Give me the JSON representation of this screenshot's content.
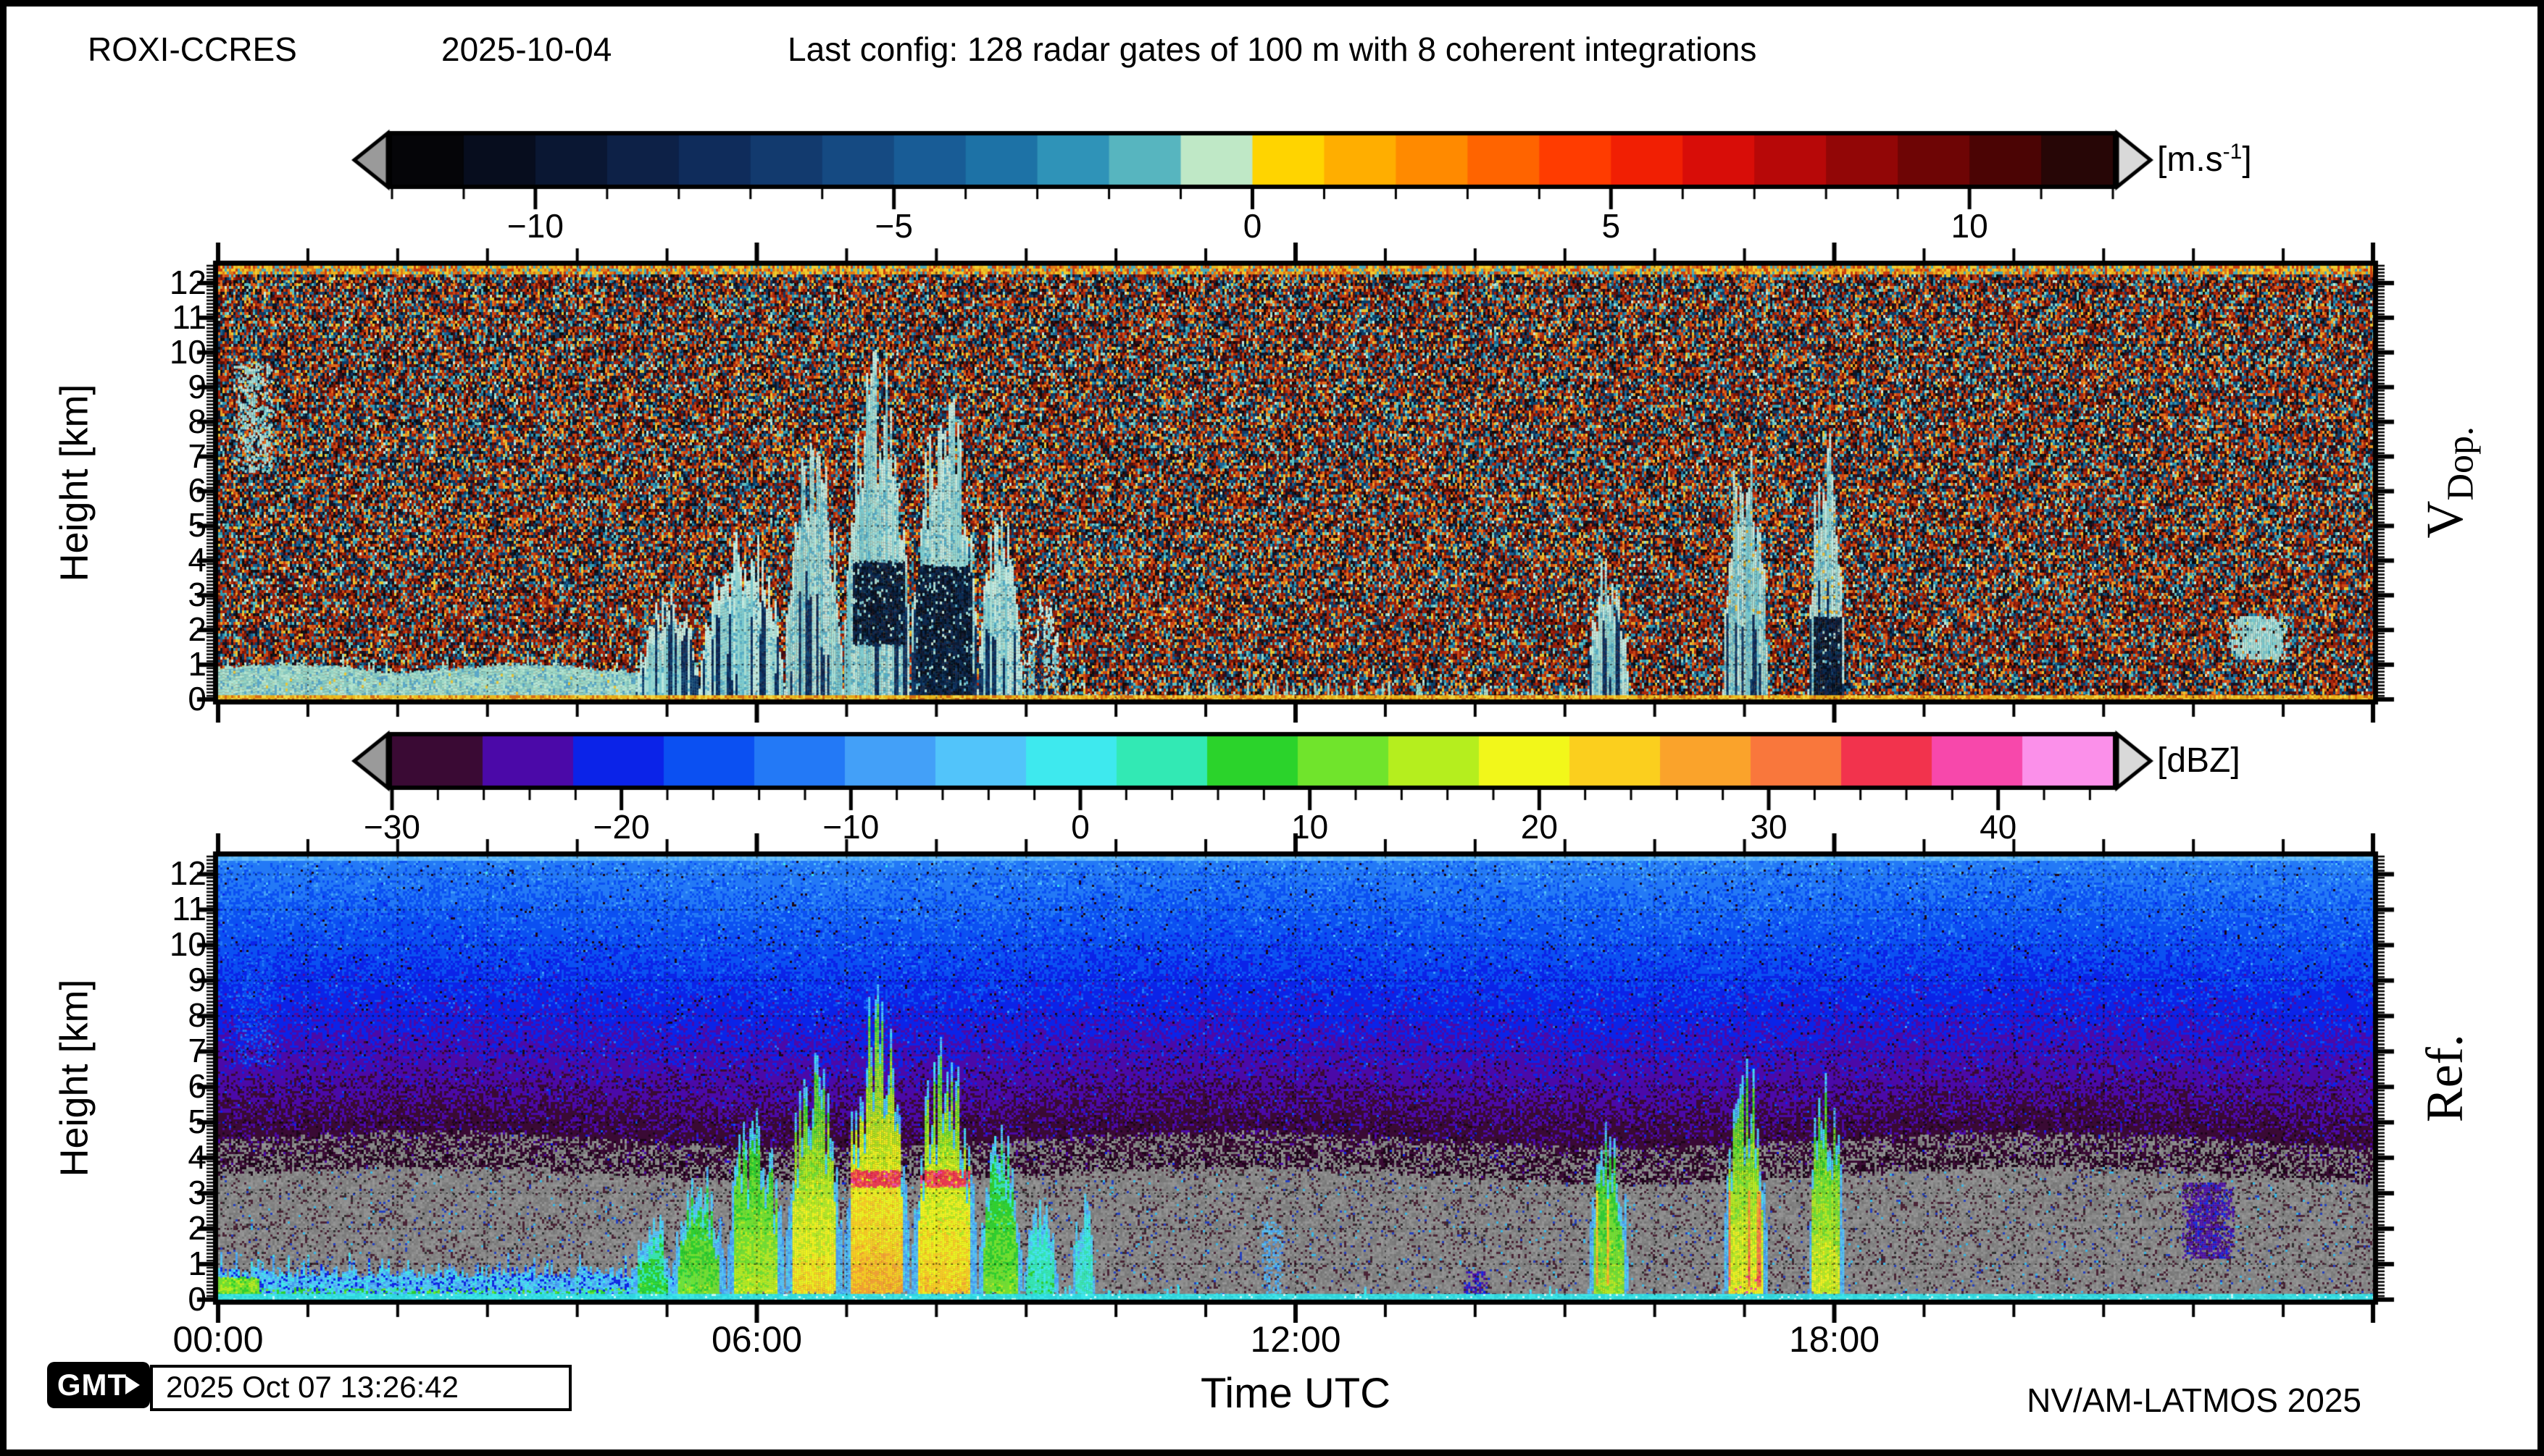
{
  "header": {
    "station": "ROXI-CCRES",
    "date": "2025-10-04",
    "config_note": "Last config: 128 radar gates of 100 m with 8 coherent integrations"
  },
  "footer": {
    "logo_text": "GMT",
    "render_timestamp": "2025 Oct 07 13:26:42",
    "credit": "NV/AM-LATMOS 2025"
  },
  "chart_data": [
    {
      "id": "vdop",
      "type": "heatmap",
      "title": "Doppler velocity time-height quicklook",
      "side_label": {
        "main": "V",
        "sub": "Dop."
      },
      "x_axis": {
        "label": "Time UTC",
        "range_hours": [
          0,
          24
        ],
        "major_ticks": [
          {
            "hour": 0,
            "label": "00:00"
          },
          {
            "hour": 6,
            "label": "06:00"
          },
          {
            "hour": 12,
            "label": "12:00"
          },
          {
            "hour": 18,
            "label": "18:00"
          }
        ],
        "minor_tick_hours": 1,
        "grid": "dotted hourly"
      },
      "y_axis": {
        "label": "Height [km]",
        "range_km": [
          0,
          12.5
        ],
        "major_tick_km": 1,
        "minor_tick_km": 0.1,
        "tick_labels": [
          "0",
          "1",
          "2",
          "3",
          "4",
          "5",
          "6",
          "7",
          "8",
          "9",
          "10",
          "11",
          "12"
        ],
        "grid": "dotted every km"
      },
      "colorbar": {
        "unit_prefix": "[m.s",
        "unit_sup": "-1",
        "unit_suffix": "]",
        "range": [
          -12,
          12
        ],
        "tick_values": [
          -10,
          -5,
          0,
          5,
          10
        ],
        "tick_labels": [
          "-10",
          "-5",
          "0",
          "5",
          "10"
        ],
        "minor_step": 1,
        "under_arrow_color": "#9a9a9a",
        "over_arrow_color": "#d9d9d9",
        "stops": [
          "#050508",
          "#070d1e",
          "#0a1733",
          "#0d2147",
          "#0f2c5b",
          "#123a6e",
          "#154a82",
          "#185c96",
          "#1d72a6",
          "#2f93b8",
          "#57b5bf",
          "#bfe8c6",
          "#ffd400",
          "#ffae00",
          "#ff8a00",
          "#ff6400",
          "#ff3c00",
          "#f11f03",
          "#d80d08",
          "#b70808",
          "#920606",
          "#6e0505",
          "#4b0404",
          "#270606"
        ]
      },
      "noise": {
        "description": "full-field aliased Doppler speckle noise",
        "palette": [
          {
            "c": "#a8260e",
            "w": 8
          },
          {
            "c": "#cb4414",
            "w": 7
          },
          {
            "c": "#e06b1c",
            "w": 5
          },
          {
            "c": "#7c1507",
            "w": 6
          },
          {
            "c": "#55100a",
            "w": 5
          },
          {
            "c": "#e89b26",
            "w": 3
          },
          {
            "c": "#e5c632",
            "w": 3
          },
          {
            "c": "#0b1628",
            "w": 7
          },
          {
            "c": "#123a64",
            "w": 6
          },
          {
            "c": "#1a6292",
            "w": 5
          },
          {
            "c": "#2f97b2",
            "w": 5
          },
          {
            "c": "#5fc0bd",
            "w": 4
          },
          {
            "c": "#93d6c8",
            "w": 2
          },
          {
            "c": "#120a08",
            "w": 6
          },
          {
            "c": "#310c1c",
            "w": 3
          },
          {
            "c": "#c8e8d8",
            "w": 1
          },
          {
            "c": "#06406a",
            "w": 3
          }
        ]
      },
      "edge_lines": {
        "top_colors": [
          "#e8b41e",
          "#f0cc30",
          "#e07818",
          "#c83c10",
          "#48a8b8"
        ],
        "bottom_colors": [
          "#f0bc1a",
          "#e8a812",
          "#f8d840",
          "#d86a10"
        ]
      },
      "cloud_colors": {
        "body": [
          "#a9dfd6",
          "#94d6d2",
          "#bfe9e0",
          "#7ccbd0"
        ],
        "deep": "#58b0c8",
        "fringe": "#c4ece2",
        "navy_streaks": [
          "#0c3060",
          "#0a2550",
          "#11406f"
        ],
        "dark_core": [
          "#071c38",
          "#0a2a52",
          "#04101f"
        ],
        "warm_specks": [
          "#e8a828",
          "#edc837"
        ],
        "bl": [
          "#a6dcc8",
          "#97d4c4",
          "#b4e4d2",
          "#86c8c0"
        ],
        "bl_striation": "#5aa8c8"
      },
      "features": [
        {
          "kind": "patch",
          "t0": 0.15,
          "t1": 0.62,
          "h0": 6.6,
          "h1": 9.7,
          "density": 0.45
        },
        {
          "kind": "boundary_layer",
          "t0": 0.0,
          "t1": 5.35,
          "h_top": 0.85
        },
        {
          "kind": "cell",
          "t0": 4.65,
          "t1": 5.35,
          "h_top": 2.8,
          "streaks": 0.45
        },
        {
          "kind": "cell",
          "t0": 5.35,
          "t1": 6.3,
          "h_top": 4.4,
          "streaks": 0.4
        },
        {
          "kind": "cell",
          "t0": 6.3,
          "t1": 6.95,
          "h_top": 6.7,
          "streaks": 0.35
        },
        {
          "kind": "cell",
          "t0": 6.95,
          "t1": 7.7,
          "h_top": 8.7,
          "streaks": 0.3,
          "dark_core": {
            "t0": 7.05,
            "t1": 7.65,
            "h0": 1.6,
            "h1": 4.0
          }
        },
        {
          "kind": "cell",
          "t0": 7.7,
          "t1": 8.45,
          "h_top": 7.7,
          "streaks": 0.75,
          "dark_core": {
            "t0": 7.75,
            "t1": 8.4,
            "h0": 0.1,
            "h1": 3.9
          }
        },
        {
          "kind": "cell",
          "t0": 8.45,
          "t1": 8.95,
          "h_top": 4.9,
          "streaks": 0.5
        },
        {
          "kind": "cell",
          "t0": 8.95,
          "t1": 9.4,
          "h_top": 2.7,
          "streaks": 0.3,
          "faint": true
        },
        {
          "kind": "grass",
          "t0": 9.4,
          "t1": 15.2,
          "h_top": 0.45,
          "density": 0.18
        },
        {
          "kind": "cell",
          "t0": 15.25,
          "t1": 15.7,
          "h_top": 3.6,
          "streaks": 0.5
        },
        {
          "kind": "cell",
          "t0": 16.75,
          "t1": 17.25,
          "h_top": 6.9,
          "streaks": 0.45,
          "warm_specks": true
        },
        {
          "kind": "cell",
          "t0": 17.7,
          "t1": 18.1,
          "h_top": 7.4,
          "streaks": 0.6,
          "warm_specks": true,
          "dark_core": {
            "t0": 17.75,
            "t1": 18.08,
            "h0": 0.0,
            "h1": 2.4
          }
        },
        {
          "kind": "patch",
          "t0": 22.35,
          "t1": 23.1,
          "h0": 1.2,
          "h1": 2.4,
          "density": 0.92
        }
      ]
    },
    {
      "id": "ref",
      "type": "heatmap",
      "title": "Radar reflectivity time-height quicklook",
      "side_label": {
        "main": "Ref.",
        "sub": ""
      },
      "x_axis": {
        "label": "Time UTC",
        "range_hours": [
          0,
          24
        ],
        "major_ticks": [
          {
            "hour": 0,
            "label": "00:00"
          },
          {
            "hour": 6,
            "label": "06:00"
          },
          {
            "hour": 12,
            "label": "12:00"
          },
          {
            "hour": 18,
            "label": "18:00"
          }
        ],
        "minor_tick_hours": 1,
        "grid": "dotted hourly"
      },
      "y_axis": {
        "label": "Height [km]",
        "range_km": [
          0,
          12.5
        ],
        "major_tick_km": 1,
        "minor_tick_km": 0.1,
        "tick_labels": [
          "0",
          "1",
          "2",
          "3",
          "4",
          "5",
          "6",
          "7",
          "8",
          "9",
          "10",
          "11",
          "12"
        ],
        "grid": "dotted every km"
      },
      "colorbar": {
        "unit_prefix": "[dBZ]",
        "unit_sup": "",
        "unit_suffix": "",
        "range": [
          -30,
          45
        ],
        "tick_values": [
          -30,
          -20,
          -10,
          0,
          10,
          20,
          30,
          40
        ],
        "tick_labels": [
          "-30",
          "-20",
          "-10",
          "0",
          "10",
          "20",
          "30",
          "40"
        ],
        "minor_step": 2,
        "under_arrow_color": "#9a9a9a",
        "over_arrow_color": "#d9d9d9",
        "stops": [
          "#3a0a34",
          "#4b09a8",
          "#0b23e8",
          "#0b50f2",
          "#2379f6",
          "#43a0f8",
          "#52c4fa",
          "#3ee9ee",
          "#32e9b4",
          "#2bd32b",
          "#70e42c",
          "#b5ee1e",
          "#f2f71a",
          "#fbcf1e",
          "#faa32b",
          "#f9773c",
          "#f2334d",
          "#f748ab",
          "#fb90ea"
        ]
      },
      "background": {
        "description": "range-dependent noise floor: bright blue aloft darkening downward; below threshold height the field is sub-noise gray",
        "gray_fill": "#7d7d7d",
        "threshold_km": 3.45,
        "slope_dbz_per_km": 2.05,
        "bottom_line_color": "#3ce8ea",
        "top_line_colors": [
          "#55b0f8",
          "#6cc0fa"
        ]
      },
      "features": [
        {
          "kind": "patch",
          "t0": 0.15,
          "t1": 0.62,
          "h0": 6.6,
          "h1": 9.7,
          "density": 0.5,
          "dbz": -16
        },
        {
          "kind": "boundary_layer",
          "t0": 0.0,
          "t1": 5.35,
          "h_top": 1.05
        },
        {
          "kind": "cell",
          "t0": 4.6,
          "t1": 5.05,
          "h_top": 2.4,
          "dbz": 10
        },
        {
          "kind": "cell",
          "t0": 5.05,
          "t1": 5.65,
          "h_top": 3.6,
          "dbz": 14
        },
        {
          "kind": "cell",
          "t0": 5.65,
          "t1": 6.3,
          "h_top": 5.2,
          "dbz": 18
        },
        {
          "kind": "cell",
          "t0": 6.3,
          "t1": 6.95,
          "h_top": 6.6,
          "dbz": 24
        },
        {
          "kind": "cell",
          "t0": 6.95,
          "t1": 7.7,
          "h_top": 8.1,
          "dbz": 28,
          "bright_band": true
        },
        {
          "kind": "cell",
          "t0": 7.7,
          "t1": 8.45,
          "h_top": 6.9,
          "dbz": 26,
          "bright_band": true
        },
        {
          "kind": "cell",
          "t0": 8.45,
          "t1": 8.95,
          "h_top": 4.6,
          "dbz": 14
        },
        {
          "kind": "cell",
          "t0": 8.95,
          "t1": 9.35,
          "h_top": 2.6,
          "dbz": 6
        },
        {
          "kind": "cell",
          "t0": 9.5,
          "t1": 9.75,
          "h_top": 3.0,
          "dbz": 4
        },
        {
          "kind": "wisp",
          "t0": 11.6,
          "t1": 11.85,
          "h_top": 2.2,
          "dbz": -6,
          "density": 0.5
        },
        {
          "kind": "grass",
          "t0": 9.4,
          "t1": 15.2,
          "h_top": 0.35,
          "dbz": -4,
          "density": 0.12
        },
        {
          "kind": "blob",
          "t0": 13.85,
          "t1": 14.15,
          "h0": 0.0,
          "h1": 0.8,
          "dbz": -23,
          "density": 0.5
        },
        {
          "kind": "cell",
          "t0": 15.25,
          "t1": 15.7,
          "h_top": 5.2,
          "dbz": 16,
          "red_streaks": 0.1
        },
        {
          "kind": "cell",
          "t0": 16.75,
          "t1": 17.25,
          "h_top": 6.8,
          "dbz": 22,
          "red_streaks": 0.18,
          "magenta_flecks": true
        },
        {
          "kind": "cell",
          "t0": 17.7,
          "t1": 18.1,
          "h_top": 6.4,
          "dbz": 20,
          "red_streaks": 0.12
        },
        {
          "kind": "blob",
          "t0": 21.85,
          "t1": 22.45,
          "h0": 1.2,
          "h1": 3.3,
          "dbz": -24,
          "density": 0.85
        }
      ]
    }
  ]
}
